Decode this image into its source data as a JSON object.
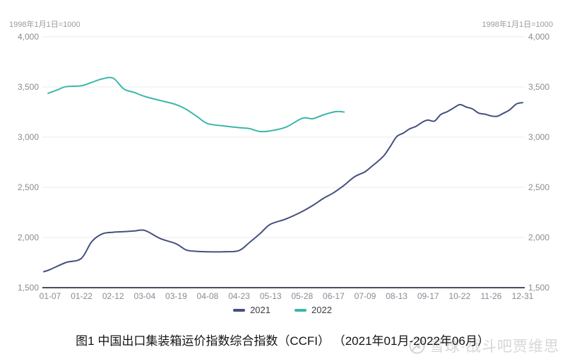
{
  "header": {
    "index_base_note": "1998年1月1日=1000"
  },
  "caption": "图1 中国出口集装箱运价指数综合指数（CCFI） （2021年01月-2022年06月）",
  "watermark": {
    "logo_icon": "xueqiu-camera-icon",
    "text": "雪球·战斗吧贾维思"
  },
  "chart_data": {
    "type": "line",
    "title": "中国出口集装箱运价指数综合指数（CCFI）",
    "xlabel": "",
    "ylabel": "",
    "grid": true,
    "legend_position": "bottom",
    "ylim": [
      1500,
      4000
    ],
    "y_axis": {
      "tick_labels": [
        "4,000",
        "3,500",
        "3,000",
        "2,500",
        "2,000",
        "1,500"
      ],
      "tick_values": [
        4000,
        3500,
        3000,
        2500,
        2000,
        1500
      ],
      "shown_on_both_sides": true
    },
    "x_axis": {
      "tick_labels": [
        "01-07",
        "01-22",
        "02-12",
        "03-04",
        "03-19",
        "04-08",
        "04-23",
        "05-13",
        "05-28",
        "06-17",
        "07-09",
        "08-13",
        "09-17",
        "10-22",
        "11-26",
        "12-31"
      ]
    },
    "colors": {
      "axis_line": "#4a4d63",
      "grid_line": "#ebebee",
      "tick_text": "#8b8b92"
    },
    "point_format": "[x_fraction_of_plot_width, index_value]",
    "series": [
      {
        "name": "2021",
        "color": "#45507e",
        "points": [
          [
            0.0,
            1659
          ],
          [
            0.013,
            1680
          ],
          [
            0.046,
            1750
          ],
          [
            0.078,
            1790
          ],
          [
            0.1,
            1958
          ],
          [
            0.122,
            2036
          ],
          [
            0.145,
            2052
          ],
          [
            0.167,
            2058
          ],
          [
            0.189,
            2065
          ],
          [
            0.211,
            2070
          ],
          [
            0.243,
            1990
          ],
          [
            0.276,
            1938
          ],
          [
            0.298,
            1875
          ],
          [
            0.32,
            1862
          ],
          [
            0.342,
            1858
          ],
          [
            0.375,
            1858
          ],
          [
            0.407,
            1868
          ],
          [
            0.429,
            1948
          ],
          [
            0.451,
            2036
          ],
          [
            0.473,
            2131
          ],
          [
            0.506,
            2185
          ],
          [
            0.54,
            2260
          ],
          [
            0.562,
            2320
          ],
          [
            0.584,
            2390
          ],
          [
            0.605,
            2445
          ],
          [
            0.627,
            2520
          ],
          [
            0.649,
            2605
          ],
          [
            0.671,
            2655
          ],
          [
            0.684,
            2705
          ],
          [
            0.698,
            2760
          ],
          [
            0.711,
            2820
          ],
          [
            0.724,
            2910
          ],
          [
            0.737,
            3005
          ],
          [
            0.751,
            3040
          ],
          [
            0.764,
            3082
          ],
          [
            0.777,
            3106
          ],
          [
            0.791,
            3150
          ],
          [
            0.802,
            3170
          ],
          [
            0.816,
            3160
          ],
          [
            0.829,
            3225
          ],
          [
            0.842,
            3252
          ],
          [
            0.855,
            3288
          ],
          [
            0.869,
            3324
          ],
          [
            0.882,
            3300
          ],
          [
            0.895,
            3282
          ],
          [
            0.908,
            3240
          ],
          [
            0.922,
            3228
          ],
          [
            0.934,
            3211
          ],
          [
            0.947,
            3208
          ],
          [
            0.96,
            3238
          ],
          [
            0.973,
            3272
          ],
          [
            0.987,
            3330
          ],
          [
            1.0,
            3344
          ]
        ]
      },
      {
        "name": "2022",
        "color": "#3ab7aa",
        "points": [
          [
            0.009,
            3437
          ],
          [
            0.028,
            3470
          ],
          [
            0.046,
            3502
          ],
          [
            0.078,
            3512
          ],
          [
            0.1,
            3545
          ],
          [
            0.122,
            3580
          ],
          [
            0.145,
            3587
          ],
          [
            0.167,
            3480
          ],
          [
            0.189,
            3445
          ],
          [
            0.211,
            3405
          ],
          [
            0.243,
            3365
          ],
          [
            0.276,
            3325
          ],
          [
            0.298,
            3275
          ],
          [
            0.32,
            3205
          ],
          [
            0.342,
            3135
          ],
          [
            0.375,
            3112
          ],
          [
            0.407,
            3095
          ],
          [
            0.429,
            3085
          ],
          [
            0.451,
            3056
          ],
          [
            0.473,
            3062
          ],
          [
            0.506,
            3100
          ],
          [
            0.54,
            3188
          ],
          [
            0.562,
            3184
          ],
          [
            0.584,
            3222
          ],
          [
            0.605,
            3250
          ],
          [
            0.616,
            3255
          ],
          [
            0.627,
            3250
          ]
        ]
      }
    ]
  }
}
